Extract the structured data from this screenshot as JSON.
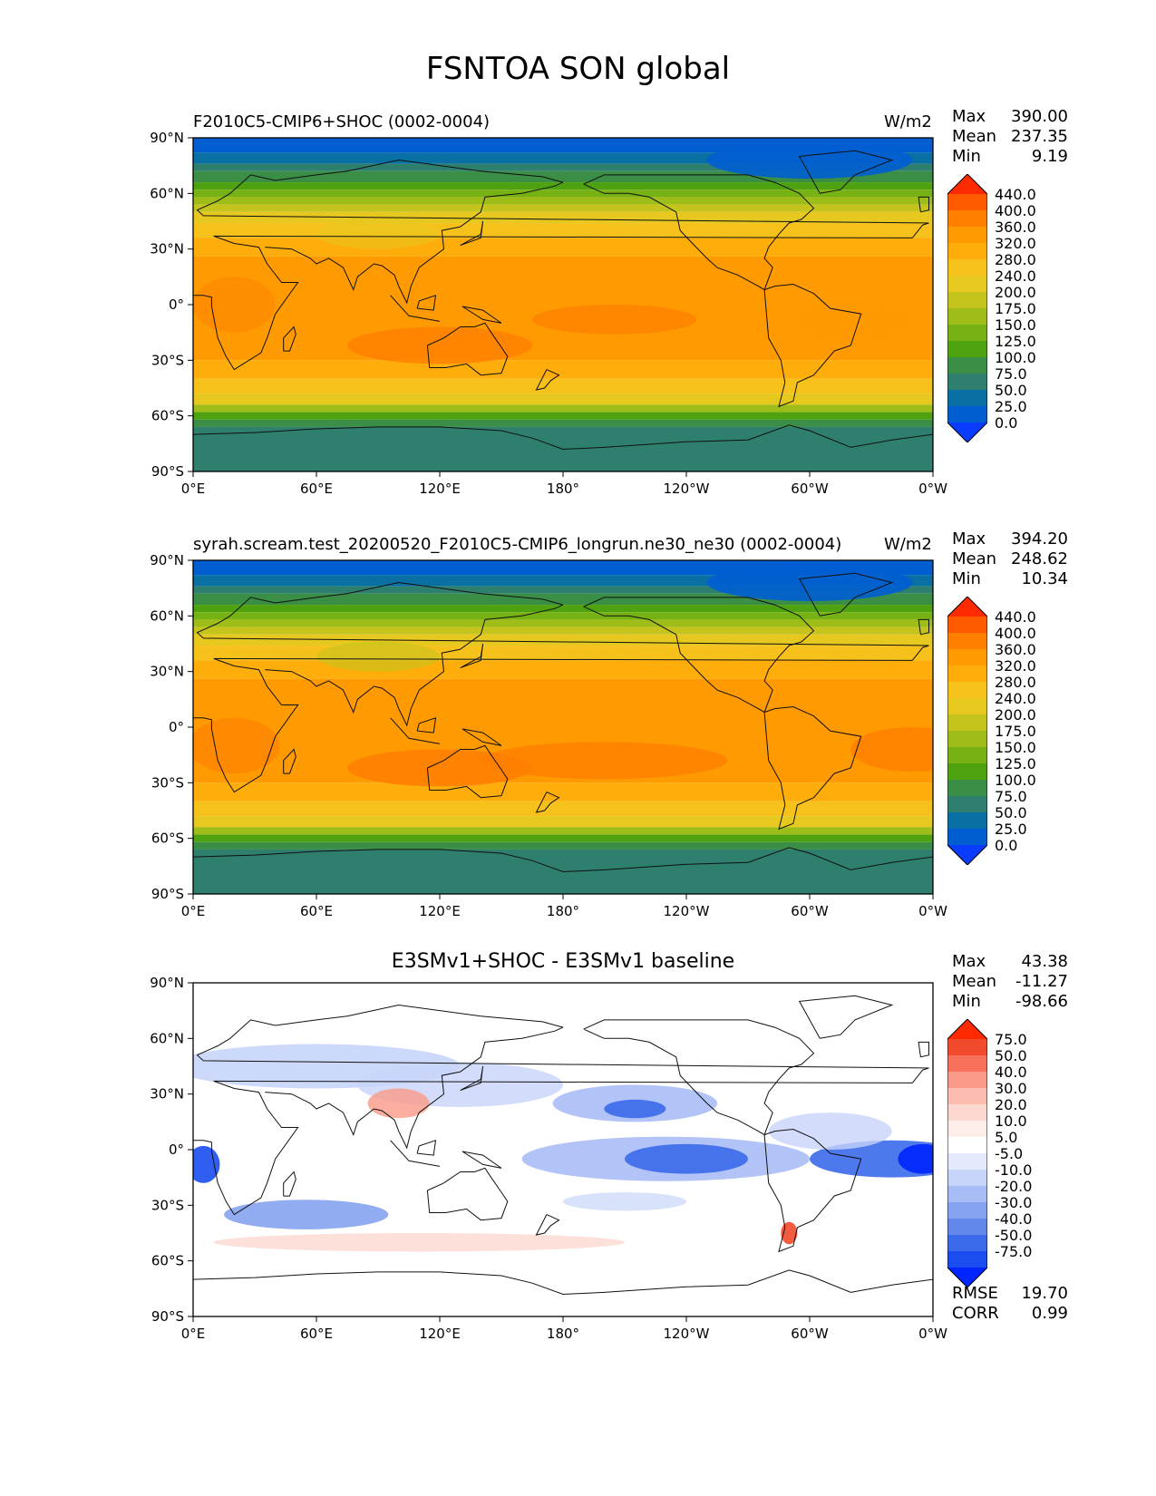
{
  "title": "FSNTOA SON global",
  "lat_ticks": [
    "90°N",
    "60°N",
    "30°N",
    "0°",
    "30°S",
    "60°S",
    "90°S"
  ],
  "lon_ticks": [
    "0°E",
    "60°E",
    "120°E",
    "180°",
    "120°W",
    "60°W",
    "0°W"
  ],
  "panels": [
    {
      "title_left": "F2010C5-CMIP6+SHOC (0002-0004)",
      "units": "W/m2",
      "stats": {
        "max_label": "Max",
        "max": "390.00",
        "mean_label": "Mean",
        "mean": "237.35",
        "min_label": "Min",
        "min": "9.19"
      }
    },
    {
      "title_left": "syrah.scream.test_20200520_F2010C5-CMIP6_longrun.ne30_ne30 (0002-0004)",
      "units": "W/m2",
      "stats": {
        "max_label": "Max",
        "max": "394.20",
        "mean_label": "Mean",
        "mean": "248.62",
        "min_label": "Min",
        "min": "10.34"
      }
    },
    {
      "title_center": "E3SMv1+SHOC - E3SMv1 baseline",
      "stats": {
        "max_label": "Max",
        "max": "43.38",
        "mean_label": "Mean",
        "mean": "-11.27",
        "min_label": "Min",
        "min": "-98.66"
      },
      "metrics": {
        "rmse_label": "RMSE",
        "rmse": "19.70",
        "corr_label": "CORR",
        "corr": "0.99"
      }
    }
  ],
  "colorbar_abs": {
    "levels": [
      "440.0",
      "400.0",
      "360.0",
      "320.0",
      "280.0",
      "240.0",
      "200.0",
      "175.0",
      "150.0",
      "125.0",
      "100.0",
      "75.0",
      "50.0",
      "25.0",
      "0.0"
    ],
    "colors": [
      "#ff2a00",
      "#ff5a00",
      "#ff7f00",
      "#ff9a00",
      "#ffad0a",
      "#f7c11c",
      "#e6c81e",
      "#c4c41c",
      "#9ebd19",
      "#77b215",
      "#4fa20f",
      "#3a8e45",
      "#2e7f6e",
      "#0a6fa3",
      "#005ed1",
      "#0a3cff"
    ]
  },
  "colorbar_diff": {
    "levels": [
      "75.0",
      "50.0",
      "40.0",
      "30.0",
      "20.0",
      "10.0",
      "5.0",
      "-5.0",
      "-10.0",
      "-20.0",
      "-30.0",
      "-40.0",
      "-50.0",
      "-75.0"
    ],
    "colors": [
      "#ff2a00",
      "#f24a2c",
      "#f7715a",
      "#fa9a88",
      "#fcbdb0",
      "#fdd8d0",
      "#fdeeea",
      "#ffffff",
      "#e4eafc",
      "#c8d5fa",
      "#a8bdf6",
      "#86a3f1",
      "#6288ec",
      "#3b6aea",
      "#1a4cf0",
      "#0025ff"
    ]
  }
}
